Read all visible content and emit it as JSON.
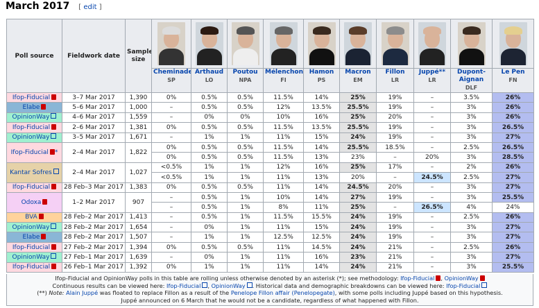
{
  "heading": {
    "title": "March 2017",
    "edit_label": "edit"
  },
  "columns": {
    "source": "Poll source",
    "date": "Fieldwork date",
    "sample": "Sample size"
  },
  "candidates": [
    {
      "name": "Cheminade",
      "party": "SP",
      "color": "#7a7a7a",
      "hair": "#dcdcdc",
      "suit": "#333"
    },
    {
      "name": "Arthaud",
      "party": "LO",
      "color": "#bb0000",
      "hair": "#2b1a12",
      "suit": "#222"
    },
    {
      "name": "Poutou",
      "party": "NPA",
      "color": "#bb0000",
      "hair": "#555",
      "suit": "#eee"
    },
    {
      "name": "Mélenchon",
      "party": "FI",
      "color": "#c9462c",
      "hair": "#666",
      "suit": "#222"
    },
    {
      "name": "Hamon",
      "party": "PS",
      "color": "#ff8080",
      "hair": "#3a2a1f",
      "suit": "#111"
    },
    {
      "name": "Macron",
      "party": "EM",
      "color": "#ffd600",
      "hair": "#5a3d2a",
      "suit": "#1b2333"
    },
    {
      "name": "Fillon",
      "party": "LR",
      "color": "#0066cc",
      "hair": "#8c8c8c",
      "suit": "#1d2a40"
    },
    {
      "name": "Juppé**",
      "party": "LR",
      "color": "#0066cc",
      "hair": "#d9b39a",
      "suit": "#222"
    },
    {
      "name": "Dupont-Aignan",
      "party": "DLF",
      "color": "#0082c4",
      "hair": "#3a2a1f",
      "suit": "#111"
    },
    {
      "name": "Le Pen",
      "party": "FN",
      "color": "#0d378a",
      "hair": "#e4cf8f",
      "suit": "#1d2433"
    }
  ],
  "rows": [
    {
      "src": "Ifop-Fiducial",
      "srcbg": "#ffd9e0",
      "icon": "pdf",
      "date": "3–7 Mar 2017",
      "size": "1,390",
      "v": [
        "0%",
        "0.5%",
        "0.5%",
        "11.5%",
        "14%",
        "25%",
        "19%",
        "–",
        "3.5%",
        "26%"
      ],
      "lead": [
        5,
        9
      ]
    },
    {
      "src": "Elabe",
      "srcbg": "#8ab6d6",
      "icon": "pdf",
      "date": "5–6 Mar 2017",
      "size": "1,000",
      "v": [
        "–",
        "0.5%",
        "0.5%",
        "12%",
        "13.5%",
        "25.5%",
        "19%",
        "–",
        "3%",
        "26%"
      ],
      "lead": [
        5,
        9
      ]
    },
    {
      "src": "OpinionWay",
      "srcbg": "#a0f0d0",
      "icon": "ext",
      "date": "4–6 Mar 2017",
      "size": "1,559",
      "v": [
        "–",
        "0%",
        "0%",
        "10%",
        "16%",
        "25%",
        "20%",
        "–",
        "3%",
        "26%"
      ],
      "lead": [
        5,
        9
      ]
    },
    {
      "src": "Ifop-Fiducial",
      "srcbg": "#ffd9e0",
      "icon": "pdf",
      "date": "2–6 Mar 2017",
      "size": "1,381",
      "v": [
        "0%",
        "0.5%",
        "0.5%",
        "11.5%",
        "13.5%",
        "25.5%",
        "19%",
        "–",
        "3%",
        "26.5%"
      ],
      "lead": [
        5,
        9
      ]
    },
    {
      "src": "OpinionWay",
      "srcbg": "#a0f0d0",
      "icon": "ext",
      "date": "3–5 Mar 2017",
      "size": "1,671",
      "v": [
        "–",
        "1%",
        "1%",
        "11%",
        "15%",
        "24%",
        "19%",
        "–",
        "3%",
        "27%"
      ],
      "lead": [
        5,
        9
      ]
    },
    {
      "src": "Ifop-Fiducial",
      "srcbg": "#ffd9e0",
      "icon": "pdf",
      "note": "*",
      "date": "2–4 Mar 2017",
      "size": "1,822",
      "span": 2,
      "v": [
        "0%",
        "0.5%",
        "0.5%",
        "11.5%",
        "14%",
        "25.5%",
        "18.5%",
        "–",
        "2.5%",
        "26.5%"
      ],
      "lead": [
        5,
        9
      ]
    },
    {
      "cont": true,
      "v": [
        "0%",
        "0.5%",
        "0.5%",
        "11.5%",
        "13%",
        "23%",
        "–",
        "20%",
        "3%",
        "28.5%"
      ],
      "lead": [
        9
      ]
    },
    {
      "src": "Kantar Sofres",
      "srcbg": "#e6d2a8",
      "icon": "ext",
      "date": "2–4 Mar 2017",
      "size": "1,027",
      "span": 2,
      "v": [
        "<0.5%",
        "1%",
        "1%",
        "12%",
        "16%",
        "25%",
        "17%",
        "–",
        "2%",
        "26%"
      ],
      "lead": [
        5,
        9
      ]
    },
    {
      "cont": true,
      "v": [
        "<0.5%",
        "1%",
        "1%",
        "11%",
        "13%",
        "20%",
        "–",
        "24.5%",
        "2.5%",
        "27%"
      ],
      "lead": [
        9
      ],
      "hl": [
        7
      ]
    },
    {
      "src": "Ifop-Fiducial",
      "srcbg": "#ffd9e0",
      "icon": "pdf",
      "date": "28 Feb–3 Mar 2017",
      "size": "1,383",
      "v": [
        "0%",
        "0.5%",
        "0.5%",
        "11%",
        "14%",
        "24.5%",
        "20%",
        "–",
        "3%",
        "27%"
      ],
      "lead": [
        5,
        9
      ]
    },
    {
      "src": "Odoxa",
      "srcbg": "#f5d0f5",
      "icon": "pdf",
      "date": "1–2 Mar 2017",
      "size": "907",
      "span": 2,
      "v": [
        "–",
        "0.5%",
        "1%",
        "10%",
        "14%",
        "27%",
        "19%",
        "–",
        "3%",
        "25.5%"
      ],
      "lead": [
        5,
        9
      ]
    },
    {
      "cont": true,
      "v": [
        "–",
        "0.5%",
        "1%",
        "8%",
        "11%",
        "25%",
        "–",
        "26.5%",
        "4%",
        "24%"
      ],
      "lead": [
        5
      ],
      "hl": [
        7
      ],
      "plain": [
        9
      ]
    },
    {
      "src": "BVA",
      "srcbg": "#ffd39b",
      "icon": "pdf",
      "date": "28 Feb–2 Mar 2017",
      "size": "1,413",
      "v": [
        "–",
        "0.5%",
        "1%",
        "11.5%",
        "15.5%",
        "24%",
        "19%",
        "–",
        "2.5%",
        "26%"
      ],
      "lead": [
        5,
        9
      ]
    },
    {
      "src": "OpinionWay",
      "srcbg": "#a0f0d0",
      "icon": "ext",
      "date": "28 Feb–2 Mar 2017",
      "size": "1,654",
      "v": [
        "–",
        "0%",
        "1%",
        "11%",
        "15%",
        "24%",
        "19%",
        "–",
        "3%",
        "27%"
      ],
      "lead": [
        5,
        9
      ]
    },
    {
      "src": "Elabe",
      "srcbg": "#8ab6d6",
      "icon": "pdf",
      "date": "28 Feb–2 Mar 2017",
      "size": "1,507",
      "v": [
        "–",
        "1%",
        "1%",
        "12.5%",
        "12.5%",
        "24%",
        "19%",
        "–",
        "3%",
        "27%"
      ],
      "lead": [
        5,
        9
      ]
    },
    {
      "src": "Ifop-Fiducial",
      "srcbg": "#ffd9e0",
      "icon": "pdf",
      "date": "27 Feb–2 Mar 2017",
      "size": "1,394",
      "v": [
        "0%",
        "0.5%",
        "0.5%",
        "11%",
        "14.5%",
        "24%",
        "21%",
        "–",
        "2.5%",
        "26%"
      ],
      "lead": [
        5,
        9
      ]
    },
    {
      "src": "OpinionWay",
      "srcbg": "#a0f0d0",
      "icon": "ext",
      "date": "27 Feb–1 Mar 2017",
      "size": "1,639",
      "v": [
        "–",
        "0%",
        "1%",
        "11%",
        "16%",
        "23%",
        "21%",
        "–",
        "3%",
        "27%"
      ],
      "lead": [
        5,
        9
      ]
    },
    {
      "src": "Ifop-Fiducial",
      "srcbg": "#ffd9e0",
      "icon": "pdf",
      "date": "26 Feb–1 Mar 2017",
      "size": "1,392",
      "v": [
        "0%",
        "1%",
        "1%",
        "11%",
        "14%",
        "24%",
        "21%",
        "–",
        "3%",
        "25.5%"
      ],
      "lead": [
        5,
        9
      ]
    }
  ],
  "notes": {
    "l1a": "Ifop-Fiducial and OpinionWay polls in this table are rolling unless otherwise denoted by an asterisk (*); see methodology: ",
    "l1b": "Ifop-Fiducial",
    "l1c": "OpinionWay",
    "l2a": "Continuous results can be viewed here: ",
    "l2b": "Ifop-Fiducial",
    "l2c": "OpinionWay",
    "l2d": ". Historical data and demographic breakdowns can be viewed here: ",
    "l2e": "Ifop-Fiducial",
    "l3a": "(**) ",
    "l3b": "Note:",
    "l3c": "Alain Juppé",
    "l3d": " was floated to replace Fillon as a result of the ",
    "l3e": "Penelope Fillon affair (Penelopegate)",
    "l3f": ", with some polls including Juppé based on this hypothesis.",
    "l4": "Juppé announced on 6 March that he would not be a candidate, regardless of what happened with Fillon."
  }
}
